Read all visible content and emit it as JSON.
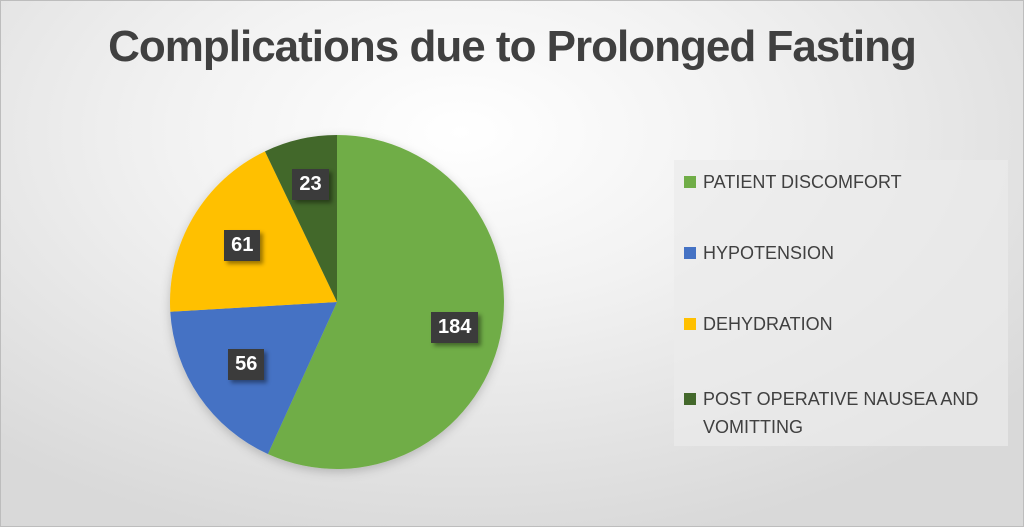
{
  "chart_data": {
    "type": "pie",
    "title": "Complications due to Prolonged Fasting",
    "categories": [
      "PATIENT DISCOMFORT",
      "HYPOTENSION",
      "DEHYDRATION",
      "POST OPERATIVE NAUSEA AND VOMITTING"
    ],
    "values": [
      184,
      56,
      61,
      23
    ],
    "colors": [
      "#70ad47",
      "#4472c4",
      "#ffc000",
      "#43682b"
    ],
    "data_labels": [
      "184",
      "56",
      "61",
      "23"
    ],
    "legend_position": "right",
    "start_angle": "12 o'clock, clockwise"
  },
  "legend": {
    "items": [
      {
        "label": "PATIENT DISCOMFORT"
      },
      {
        "label": "HYPOTENSION"
      },
      {
        "label": "DEHYDRATION"
      },
      {
        "label": "POST OPERATIVE NAUSEA AND VOMITTING"
      }
    ]
  }
}
